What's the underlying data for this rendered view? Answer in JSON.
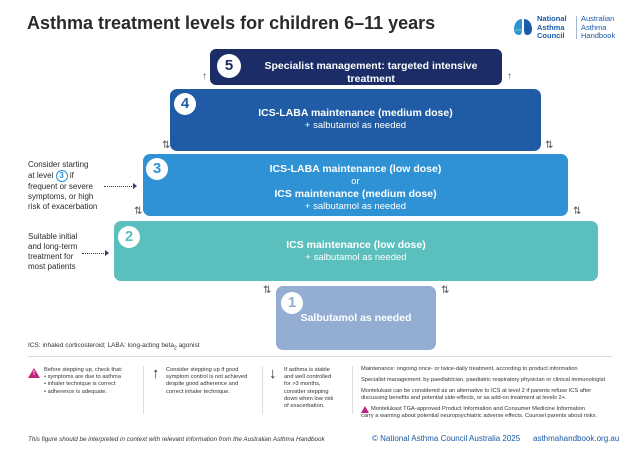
{
  "title": "Asthma treatment levels for children 6–11 years",
  "logo": {
    "org_lines": [
      "National",
      "Asthma",
      "Council"
    ],
    "product_lines": [
      "Australian",
      "Asthma",
      "Handbook"
    ],
    "colors": [
      "#1a5aa8",
      "#2e92d4",
      "#5bbfbd"
    ]
  },
  "levels": [
    {
      "number": "5",
      "color": "#1c2c66",
      "bold_lines": [
        "Specialist management: targeted intensive treatment"
      ],
      "plain_lines": []
    },
    {
      "number": "4",
      "color": "#1f5ca5",
      "bold_lines": [
        "ICS-LABA maintenance  (medium dose)"
      ],
      "plain_lines": [
        "+ salbutamol as needed"
      ]
    },
    {
      "number": "3",
      "color": "#2e92d4",
      "bold_lines": [
        "ICS-LABA maintenance (low dose)"
      ],
      "or_text": "or",
      "bold_lines_2": [
        "ICS maintenance (medium dose)"
      ],
      "plain_lines": [
        "+ salbutamol as needed"
      ]
    },
    {
      "number": "2",
      "color": "#5bbfbd",
      "bold_lines": [
        "ICS maintenance  (low dose)"
      ],
      "plain_lines": [
        "+ salbutamol as needed"
      ]
    },
    {
      "number": "1",
      "color": "#93aed2",
      "bold_lines": [
        "Salbutamol as needed"
      ],
      "plain_lines": []
    }
  ],
  "arrows": {
    "up": "↑",
    "up_down": "⇅"
  },
  "side_notes": {
    "level3": {
      "line1": "Consider starting",
      "line2_prefix": "at level",
      "line2_num": "3",
      "line2_suffix": "if",
      "rest": [
        "frequent or severe",
        "symptoms, or high",
        "risk of exacerbation"
      ]
    },
    "level2": [
      "Suitable initial",
      "and long-term",
      "treatment for",
      "most patients"
    ]
  },
  "definitions": {
    "text": "ICS: inhaled corticosteroid; LABA: long-acting beta",
    "sub": "2",
    "suffix": " agonist"
  },
  "notes": {
    "before_stepping_up": [
      "Before stepping up, check that:",
      "•  symptoms are due to asthma",
      "•  inhaler technique is correct",
      "•  adherence is adequate."
    ],
    "step_up": [
      "Consider stepping up if good",
      "symptom control is not achieved",
      "despite good adherence and",
      "correct inhaler technique."
    ],
    "step_down": [
      "If asthma is stable",
      "and well controlled",
      "for >3 months,",
      "consider stepping",
      "down when low risk",
      "of exacerbation."
    ],
    "definitions_right": [
      [
        "Maintenance: ongoing once- or twice-daily treatment, according to product information"
      ],
      [
        "Specialist management: by paediatrician, paediatric respiratory physician or clinical immunologist"
      ],
      [
        "Montelukast can be considered as an alternative to ICS at level 2 if parents refuse ICS after",
        "discussing benefits and potential side-effects, or as add-on treatment at levels 2+."
      ],
      [
        "Montelukast TGA-approved Product Information and Consumer Medicine Information",
        "carry a warning about potential neuropsychiatric adverse effects. Counsel parents about risks."
      ]
    ]
  },
  "footer": {
    "note": "This figure should be interpreted in context with relevant information from the Australian Asthma Handbook",
    "copyright": "© National Asthma Council Australia 2025",
    "site": "asthmahandbook.org.au"
  }
}
